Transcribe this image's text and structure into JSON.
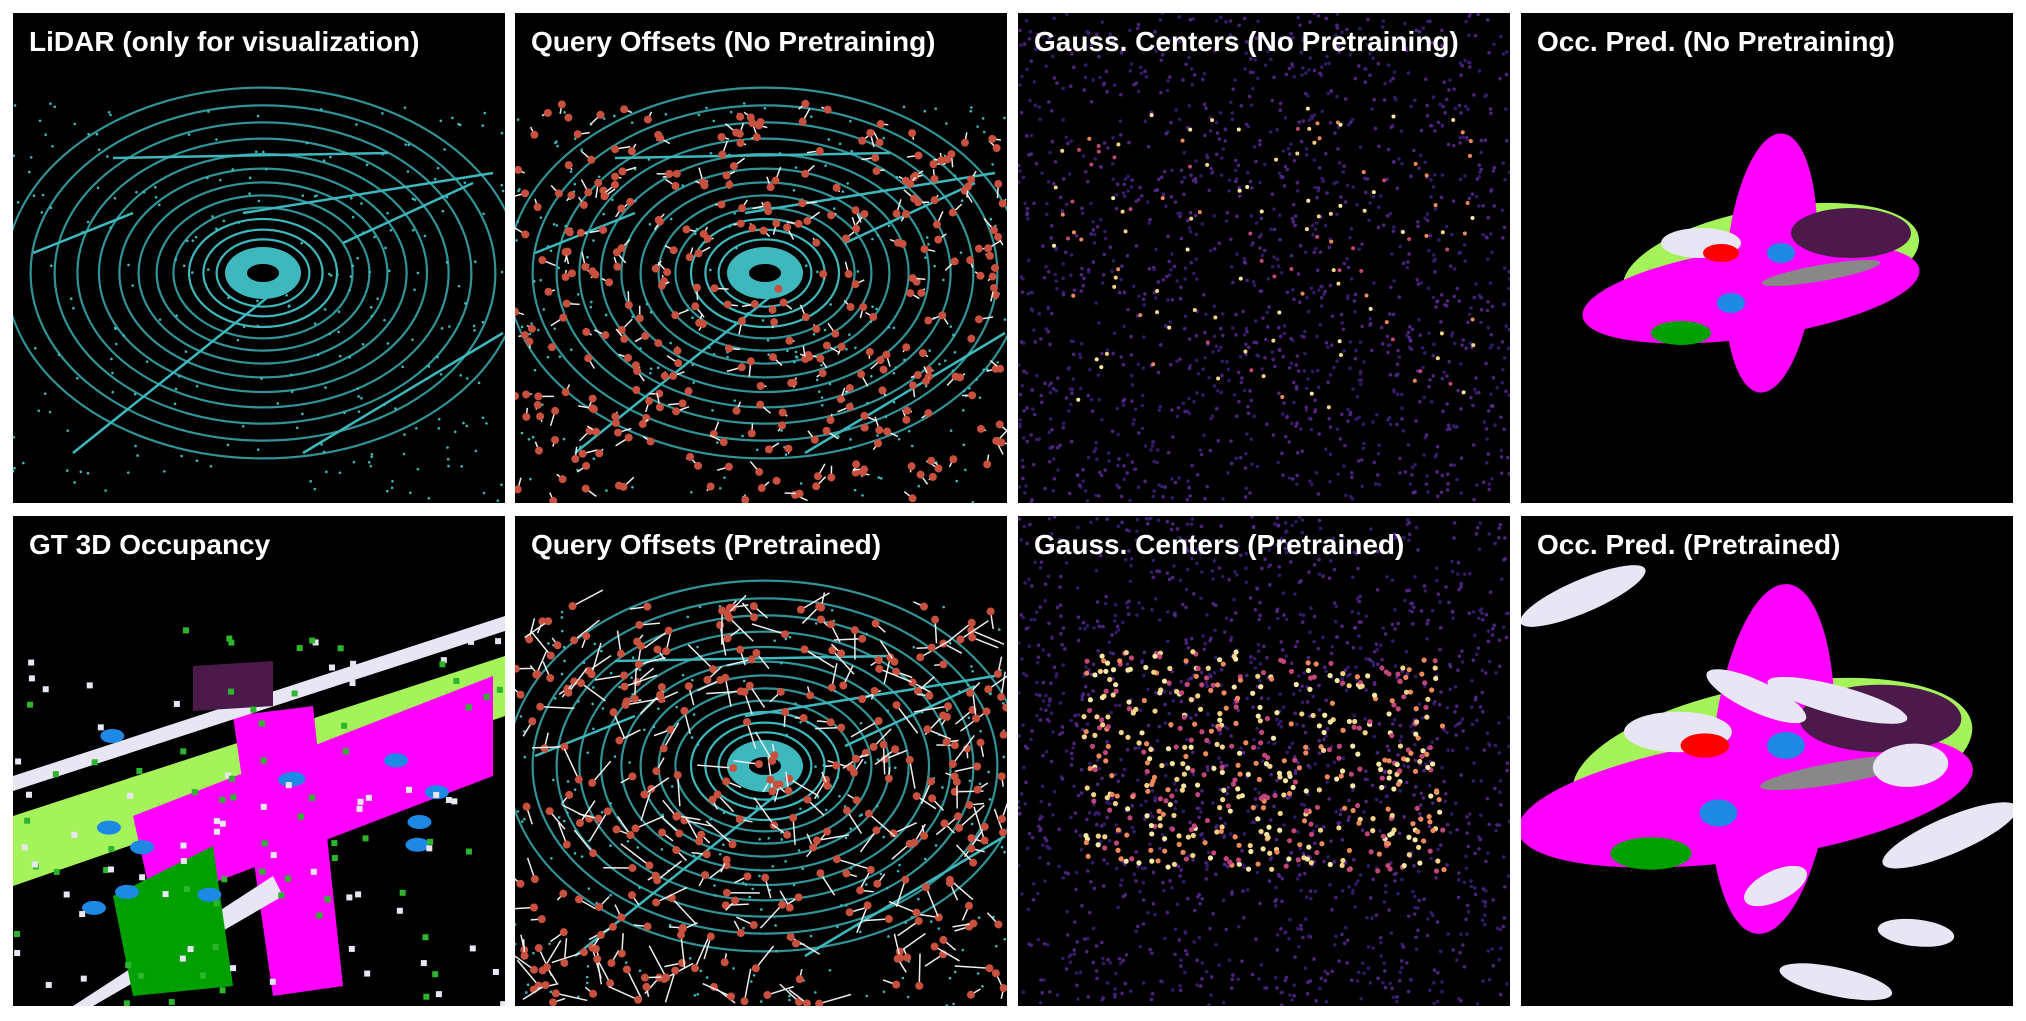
{
  "panels": [
    {
      "title": "LiDAR (only for visualization)"
    },
    {
      "title": "Query Offsets (No Pretraining)"
    },
    {
      "title": "Gauss. Centers (No Pretraining)"
    },
    {
      "title": "Occ. Pred. (No Pretraining)"
    },
    {
      "title": "GT 3D Occupancy"
    },
    {
      "title": "Query Offsets (Pretrained)"
    },
    {
      "title": "Gauss. Centers (Pretrained)"
    },
    {
      "title": "Occ. Pred. (Pretrained)"
    }
  ]
}
